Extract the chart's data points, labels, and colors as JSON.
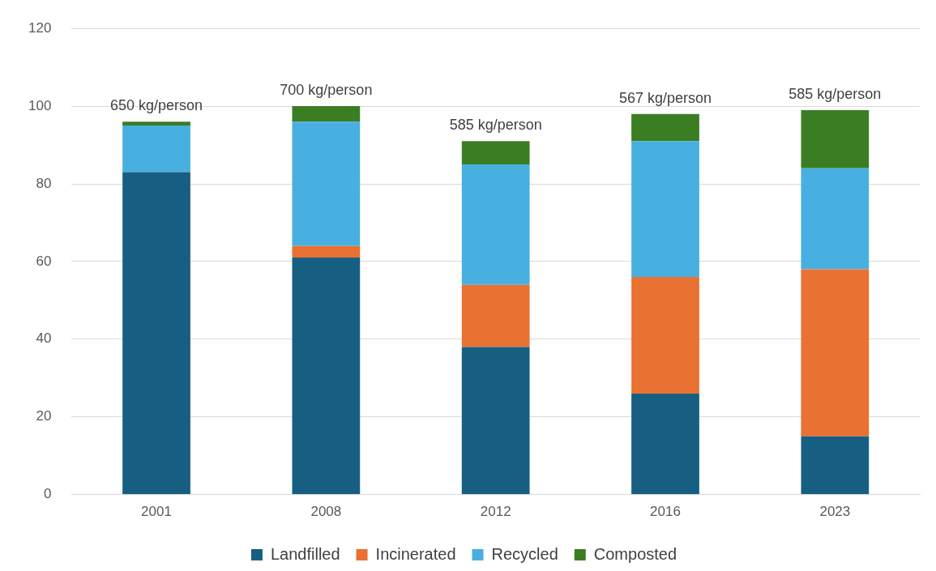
{
  "chart_data": {
    "type": "bar",
    "stacked": true,
    "categories": [
      "2001",
      "2008",
      "2012",
      "2016",
      "2023"
    ],
    "series": [
      {
        "name": "Landfilled",
        "color": "#175f82",
        "values": [
          83,
          61,
          38,
          26,
          15
        ]
      },
      {
        "name": "Incinerated",
        "color": "#e97132",
        "values": [
          0,
          3,
          16,
          30,
          43
        ]
      },
      {
        "name": "Recycled",
        "color": "#47b0e0",
        "values": [
          12,
          32,
          31,
          35,
          26
        ]
      },
      {
        "name": "Composted",
        "color": "#3b7d23",
        "values": [
          1,
          4,
          6,
          7,
          15
        ]
      }
    ],
    "ylim": [
      0,
      120
    ],
    "yticks": [
      0,
      20,
      40,
      60,
      80,
      100,
      120
    ],
    "grid": "y",
    "legend": "bottom",
    "annotations": [
      {
        "text": "650 kg/person",
        "x": "2001",
        "y": 96
      },
      {
        "text": "700 kg/person",
        "x": "2008",
        "y": 100
      },
      {
        "text": "585 kg/person",
        "x": "2012",
        "y": 91
      },
      {
        "text": "567 kg/person",
        "x": "2016",
        "y": 98
      },
      {
        "text": "585 kg/person",
        "x": "2023",
        "y": 99
      }
    ]
  }
}
